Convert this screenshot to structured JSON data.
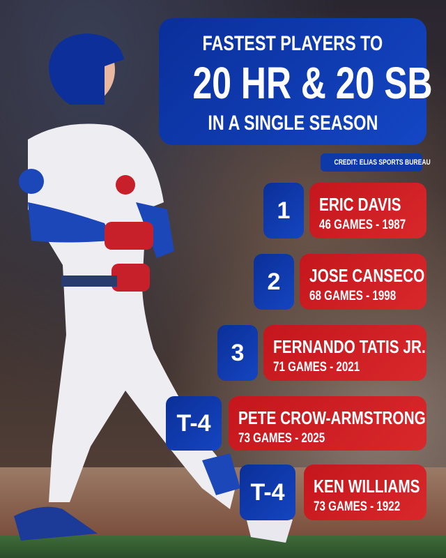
{
  "title": {
    "line1": "FASTEST PLAYERS TO",
    "line2": "20 HR & 20 SB",
    "line3": "IN A SINGLE SEASON"
  },
  "credit": "CREDIT: ELIAS SPORTS BUREAU",
  "colors": {
    "blue": "#1445c0",
    "red": "#d8282c"
  },
  "rankings": [
    {
      "rank": "1",
      "name": "ERIC DAVIS",
      "detail": "46 GAMES - 1987"
    },
    {
      "rank": "2",
      "name": "JOSE CANSECO",
      "detail": "68 GAMES - 1998"
    },
    {
      "rank": "3",
      "name": "FERNANDO TATIS JR.",
      "detail": "71 GAMES - 2021"
    },
    {
      "rank": "T-4",
      "name": "PETE CROW-ARMSTRONG",
      "detail": "73 GAMES - 2025"
    },
    {
      "rank": "T-4",
      "name": "KEN WILLIAMS",
      "detail": "73 GAMES - 1922"
    }
  ]
}
